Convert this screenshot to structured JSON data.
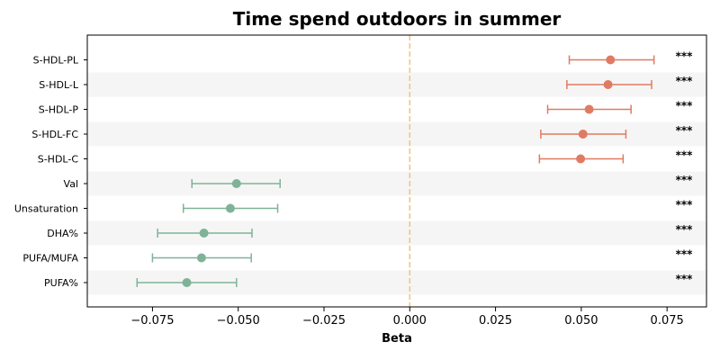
{
  "chart_data": {
    "type": "forest",
    "title": "Time spend outdoors in summer",
    "xlabel": "Beta",
    "ylabel": "",
    "xlim": [
      -0.094,
      0.0865
    ],
    "x_ticks": [
      -0.075,
      -0.05,
      -0.025,
      0.0,
      0.025,
      0.05,
      0.075
    ],
    "x_tick_labels": [
      "−0.075",
      "−0.050",
      "−0.025",
      "0.000",
      "0.025",
      "0.050",
      "0.075"
    ],
    "reference_line": 0.0,
    "reference_color": "#f0c27b",
    "positive_color": "#e07b62",
    "negative_color": "#7fb398",
    "stripe_color": "#f5f5f5",
    "grid": false,
    "rows": [
      {
        "label": "S-HDL-PL",
        "beta": 0.0585,
        "ci_low": 0.0465,
        "ci_high": 0.0712,
        "significance": "***"
      },
      {
        "label": "S-HDL-L",
        "beta": 0.0578,
        "ci_low": 0.0458,
        "ci_high": 0.0705,
        "significance": "***"
      },
      {
        "label": "S-HDL-P",
        "beta": 0.0523,
        "ci_low": 0.0402,
        "ci_high": 0.0645,
        "significance": "***"
      },
      {
        "label": "S-HDL-FC",
        "beta": 0.0505,
        "ci_low": 0.0382,
        "ci_high": 0.063,
        "significance": "***"
      },
      {
        "label": "S-HDL-C",
        "beta": 0.0498,
        "ci_low": 0.0378,
        "ci_high": 0.0622,
        "significance": "***"
      },
      {
        "label": "Val",
        "beta": -0.0505,
        "ci_low": -0.0635,
        "ci_high": -0.0378,
        "significance": "***"
      },
      {
        "label": "Unsaturation",
        "beta": -0.0523,
        "ci_low": -0.066,
        "ci_high": -0.0385,
        "significance": "***"
      },
      {
        "label": "DHA%",
        "beta": -0.06,
        "ci_low": -0.0735,
        "ci_high": -0.046,
        "significance": "***"
      },
      {
        "label": "PUFA/MUFA",
        "beta": -0.0607,
        "ci_low": -0.075,
        "ci_high": -0.0462,
        "significance": "***"
      },
      {
        "label": "PUFA%",
        "beta": -0.065,
        "ci_low": -0.0795,
        "ci_high": -0.0505,
        "significance": "***"
      }
    ]
  }
}
